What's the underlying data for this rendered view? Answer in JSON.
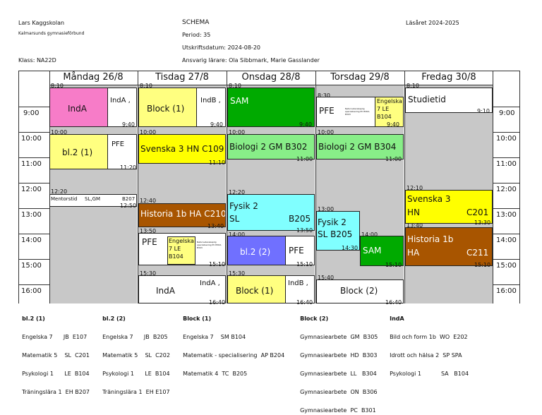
{
  "header": {
    "school": "Lars Kaggskolan",
    "org": "Kalmarsunds gymnasieförbund",
    "class": "Klass: NA22D",
    "title": "SCHEMA",
    "period": "Period: 35",
    "print_date": "Utskriftsdatum: 2024-08-20",
    "teachers": "Ansvarig lärare: Ola Sibbmark, Marie Gasslander",
    "year": "Läsåret 2024-2025"
  },
  "days": [
    "Måndag 26/8",
    "Tisdag 27/8",
    "Onsdag 28/8",
    "Torsdag 29/8",
    "Fredag 30/8"
  ],
  "hours": [
    "9:00",
    "10:00",
    "11:00",
    "12:00",
    "13:00",
    "14:00",
    "15:00",
    "16:00"
  ],
  "times": {
    "t0810": "8:10",
    "t0830": "8:30",
    "t0940": "9:40",
    "t0910": "9:10",
    "t1000": "10:00",
    "t1120": "11:20",
    "t1110": "11:10",
    "t1100": "11:00",
    "t1220": "12:20",
    "t1250": "12:50",
    "t1240": "12:40",
    "t1340": "13:40",
    "t1350": "13:50",
    "t1510": "15:10",
    "t1530": "15:30",
    "t1640": "16:40",
    "t1200": "12:00",
    "t1400": "14:00",
    "t1430": "14:30",
    "t1300": "13:00",
    "t1540": "15:40",
    "t1210": "12:10",
    "t1330": "13:30"
  },
  "lessons": {
    "inda": "IndA",
    "inda_comma": "IndA ,",
    "indb_comma": "IndB ,",
    "indb": "IndB ,",
    "block1": "Block (1)",
    "block2": "Block (2)",
    "bl21": "bl.2 (1)",
    "bl22": "bl.2 (2)",
    "pfe": "PFE",
    "sam": "SAM",
    "studietid": "Studietid",
    "svenska3": "Svenska 3  HN  C109",
    "biologi2a": "Biologi 2  GM  B302",
    "biologi2b": "Biologi 2  GM  B304",
    "mentorstid": "Mentorstid",
    "mentor_t": "SL,GM",
    "mentor_r": "B207",
    "historia_mon": "Historia 1b  HA  C210",
    "fysik2": "Fysik 2",
    "sl": "SL",
    "b205": "B205",
    "fysik2b": "Fysik 2",
    "fysik2b_r": "SL  B205",
    "eng7_a": "Engelska",
    "eng7_b": "7 LE",
    "eng7_c": "B104",
    "tiny": "Naturvetenskaplig specialisering PC B302, B303",
    "sv3_a": "Svenska 3",
    "sv3_t": "HN",
    "sv3_r": "C201",
    "hist_a": "Historia 1b",
    "hist_t": "HA",
    "hist_r": "C211"
  },
  "legend": {
    "bl21_title": "bl.2 (1)",
    "bl21_rows": [
      "Engelska 7      JB  E107",
      "Matematik 5    SL  C201",
      "Psykologi 1      LE  B104",
      "Träningslära 1  EH B207"
    ],
    "bl22_title": "bl.2 (2)",
    "bl22_rows": [
      "Engelska 7      JB  B205",
      "Matematik 5    SL  C202",
      "Psykologi 1      LE  B104",
      "Träningslära 1  EH E107"
    ],
    "block1_title": "Block (1)",
    "block1_rows": [
      "Engelska 7    SM B104",
      "Matematik - specialisering  AP B204",
      "Matematik 4  TC  B205"
    ],
    "block2_title": "Block (2)",
    "block2_rows": [
      "Gymnasiearbete  GM  B305",
      "Gymnasiearbete  HD  B303",
      "Gymnasiearbete  LL   B304",
      "Gymnasiearbete  ON  B306",
      "Gymnasiearbete  PC  B301"
    ],
    "inda_title": "IndA",
    "inda_rows": [
      "Bild och form 1b  WO  E202",
      "Idrott och hälsa 2  SP SPA",
      "Psykologi 1           SA   B104"
    ]
  },
  "colors": {
    "pink": "#f77cc8",
    "yellow": "#ffff80",
    "green": "#00aa00",
    "lightgreen": "#88ee88",
    "cyan": "#80ffff",
    "brown": "#a85500",
    "blue": "#7070ff",
    "brightyellow": "#ffff00",
    "gray": "#c8c8c8"
  }
}
